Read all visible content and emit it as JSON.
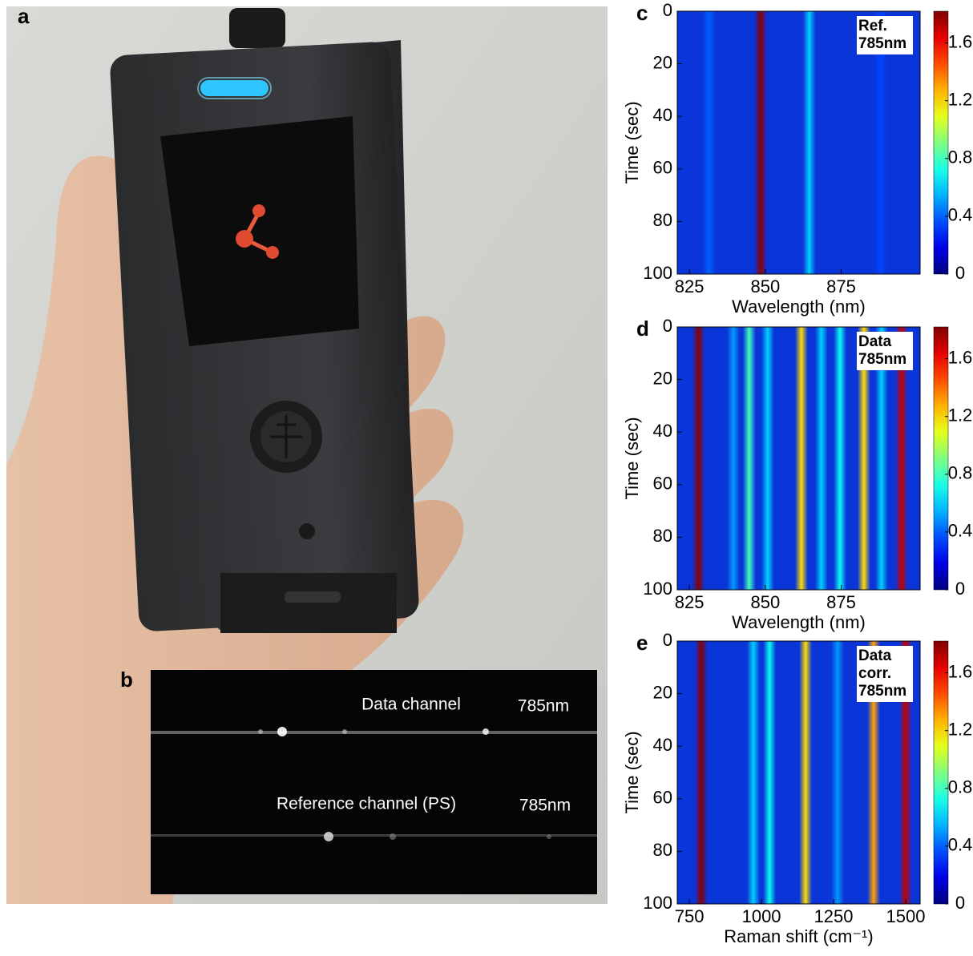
{
  "figure": {
    "a": {
      "label": "a"
    },
    "b": {
      "label": "b",
      "texts": [
        "Data channel",
        "785nm",
        "Reference channel (PS)",
        "785nm"
      ]
    }
  },
  "chart_data": [
    {
      "type": "heatmap",
      "panel_label": "c",
      "annotation": [
        "Ref.",
        "785nm"
      ],
      "xlabel": "Wavelength (nm)",
      "ylabel": "Time (sec)",
      "x": [
        831.5,
        848.5,
        864.5,
        888
      ],
      "values": [
        0.4,
        1.8,
        0.6,
        0.35
      ],
      "xlim": [
        821,
        901
      ],
      "xticks": [
        825,
        850,
        875
      ],
      "ylim": [
        100,
        0
      ],
      "yticks": [
        0,
        20,
        40,
        60,
        80,
        100
      ],
      "clim": [
        0,
        1.82
      ],
      "cticks": [
        0,
        0.4,
        0.8,
        1.2,
        1.6
      ],
      "colormap": "jet"
    },
    {
      "type": "heatmap",
      "panel_label": "d",
      "annotation": [
        "Data",
        "785nm"
      ],
      "xlabel": "Wavelength (nm)",
      "ylabel": "Time (sec)",
      "x": [
        828,
        839.5,
        844.7,
        850.8,
        861.9,
        868.5,
        874.6,
        882.5,
        888.3,
        894.9
      ],
      "values": [
        1.8,
        0.5,
        0.8,
        0.6,
        1.2,
        0.6,
        0.7,
        1.2,
        0.6,
        1.7
      ],
      "xlim": [
        821,
        901
      ],
      "xticks": [
        825,
        850,
        875
      ],
      "ylim": [
        100,
        0
      ],
      "yticks": [
        0,
        20,
        40,
        60,
        80,
        100
      ],
      "clim": [
        0,
        1.82
      ],
      "cticks": [
        0,
        0.4,
        0.8,
        1.2,
        1.6
      ],
      "colormap": "jet"
    },
    {
      "type": "heatmap",
      "panel_label": "e",
      "annotation": [
        "Data",
        "corr.",
        "785nm"
      ],
      "xlabel": "Raman shift (cm⁻¹)",
      "ylabel": "Time (sec)",
      "x": [
        791,
        972,
        1028,
        1153,
        1264,
        1389,
        1500
      ],
      "values": [
        1.8,
        0.6,
        0.7,
        1.2,
        0.5,
        1.3,
        1.7
      ],
      "xlim": [
        708,
        1550
      ],
      "xticks": [
        750,
        1000,
        1250,
        1500
      ],
      "ylim": [
        100,
        0
      ],
      "yticks": [
        0,
        20,
        40,
        60,
        80,
        100
      ],
      "clim": [
        0,
        1.82
      ],
      "cticks": [
        0,
        0.4,
        0.8,
        1.2,
        1.6
      ],
      "colormap": "jet"
    }
  ]
}
